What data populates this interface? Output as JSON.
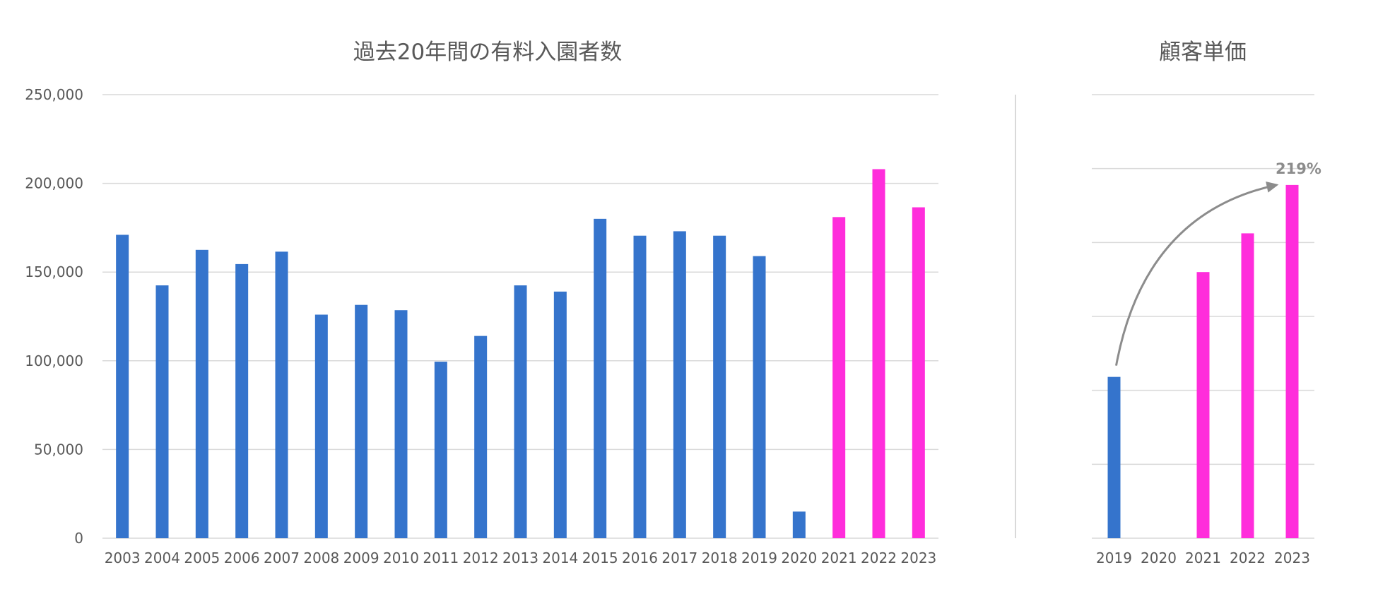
{
  "colors": {
    "past": "#3574cc",
    "recent": "#ff2ddb",
    "grid": "#d9d9d9",
    "text": "#595959",
    "arrow": "#8c8c8c"
  },
  "chart_data": [
    {
      "type": "bar",
      "title": "過去20年間の有料入園者数",
      "xlabel": "",
      "ylabel": "",
      "ylim": [
        0,
        250000
      ],
      "ytick_step": 50000,
      "ytick_labels": [
        "0",
        "50,000",
        "100,000",
        "150,000",
        "200,000",
        "250,000"
      ],
      "grid": true,
      "categories": [
        "2003",
        "2004",
        "2005",
        "2006",
        "2007",
        "2008",
        "2009",
        "2010",
        "2011",
        "2012",
        "2013",
        "2014",
        "2015",
        "2016",
        "2017",
        "2018",
        "2019",
        "2020",
        "2021",
        "2022",
        "2023"
      ],
      "values": [
        171000,
        142500,
        162500,
        154500,
        161500,
        126000,
        131500,
        128500,
        99500,
        114000,
        142500,
        139000,
        180000,
        170500,
        173000,
        170500,
        159000,
        15000,
        181000,
        208000,
        186500
      ],
      "highlight_from": "2021"
    },
    {
      "type": "bar",
      "title": "顧客単価",
      "xlabel": "",
      "ylabel": "",
      "grid": true,
      "y_scale": "relative (2019 = 100%)",
      "ylim": [
        0,
        275
      ],
      "categories": [
        "2019",
        "2020",
        "2021",
        "2022",
        "2023"
      ],
      "values": [
        100,
        null,
        165,
        189,
        219
      ],
      "highlight_from": "2021",
      "annotation": {
        "text": "219%",
        "from": "2019",
        "to": "2023"
      }
    }
  ]
}
